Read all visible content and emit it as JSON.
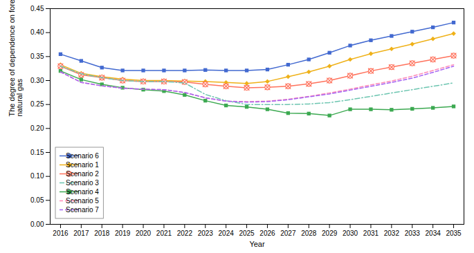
{
  "chart_data": {
    "type": "line",
    "xlabel": "Year",
    "ylabel": "The degree of dependence on foreign\nnatural gas",
    "x": [
      2016,
      2017,
      2018,
      2019,
      2020,
      2021,
      2022,
      2023,
      2024,
      2025,
      2026,
      2027,
      2028,
      2029,
      2030,
      2031,
      2032,
      2033,
      2034,
      2035
    ],
    "xlim": [
      2015.5,
      2035.5
    ],
    "xticks": [
      2016,
      2017,
      2018,
      2019,
      2020,
      2021,
      2022,
      2023,
      2024,
      2025,
      2026,
      2027,
      2028,
      2029,
      2030,
      2031,
      2032,
      2033,
      2034,
      2035
    ],
    "ylim": [
      0,
      0.45
    ],
    "yticks": [
      {
        "value": 0,
        "label": "0.00"
      },
      0.05,
      {
        "value": 0.1,
        "label": "0.10"
      },
      0.15,
      {
        "value": 0.2,
        "label": "0.20"
      },
      0.25,
      {
        "value": 0.3,
        "label": "0.30"
      },
      0.35,
      {
        "value": 0.4,
        "label": "0.40"
      },
      0.45
    ],
    "grid": false,
    "legend": "lower left",
    "series": [
      {
        "name": "Scenario 6",
        "marker": "square",
        "line_style": "solid",
        "values": [
          0.355,
          0.341,
          0.327,
          0.321,
          0.321,
          0.321,
          0.321,
          0.322,
          0.321,
          0.321,
          0.323,
          0.333,
          0.344,
          0.358,
          0.373,
          0.384,
          0.393,
          0.402,
          0.411,
          0.421
        ]
      },
      {
        "name": "Scenario 1",
        "marker": "diamond",
        "line_style": "solid",
        "values": [
          0.333,
          0.315,
          0.308,
          0.303,
          0.3,
          0.3,
          0.299,
          0.298,
          0.296,
          0.294,
          0.298,
          0.308,
          0.318,
          0.33,
          0.344,
          0.356,
          0.366,
          0.376,
          0.387,
          0.398
        ]
      },
      {
        "name": "Scenario 2",
        "marker": "circled_x",
        "line_style": "solid",
        "values": [
          0.33,
          0.312,
          0.306,
          0.3,
          0.298,
          0.298,
          0.297,
          0.292,
          0.288,
          0.285,
          0.286,
          0.288,
          0.293,
          0.3,
          0.31,
          0.32,
          0.328,
          0.336,
          0.344,
          0.352
        ]
      },
      {
        "name": "Scenario 3",
        "marker": "none",
        "line_style": "dashdot",
        "values": [
          0.33,
          0.314,
          0.306,
          0.3,
          0.298,
          0.298,
          0.295,
          0.271,
          0.258,
          0.25,
          0.25,
          0.25,
          0.251,
          0.254,
          0.26,
          0.267,
          0.274,
          0.281,
          0.288,
          0.295
        ]
      },
      {
        "name": "Scenario 4",
        "marker": "square",
        "line_style": "solid",
        "values": [
          0.32,
          0.302,
          0.292,
          0.285,
          0.281,
          0.278,
          0.27,
          0.258,
          0.248,
          0.245,
          0.24,
          0.232,
          0.231,
          0.227,
          0.24,
          0.24,
          0.239,
          0.241,
          0.243,
          0.246
        ]
      },
      {
        "name": "Scenario 5",
        "marker": "none",
        "line_style": "dashed",
        "values": [
          0.318,
          0.296,
          0.289,
          0.284,
          0.282,
          0.281,
          0.275,
          0.264,
          0.257,
          0.256,
          0.257,
          0.261,
          0.267,
          0.274,
          0.282,
          0.291,
          0.299,
          0.309,
          0.321,
          0.333
        ]
      },
      {
        "name": "Scenario 7",
        "marker": "none",
        "line_style": "dashed",
        "values": [
          0.318,
          0.296,
          0.289,
          0.284,
          0.282,
          0.281,
          0.275,
          0.264,
          0.257,
          0.255,
          0.256,
          0.26,
          0.266,
          0.272,
          0.28,
          0.288,
          0.296,
          0.305,
          0.317,
          0.33
        ]
      }
    ]
  }
}
